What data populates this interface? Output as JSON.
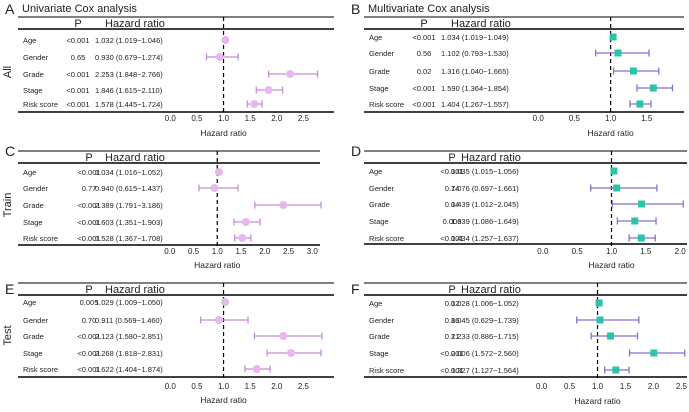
{
  "figure": {
    "row_labels": [
      "All",
      "Train",
      "Test"
    ],
    "colors": {
      "univariate_marker": "#e9b7ef",
      "univariate_line": "#c58fd6",
      "multivariate_marker": "#2bc4a9",
      "multivariate_line": "#8a6ed0",
      "text": "#222222",
      "rule": "#000000"
    }
  },
  "chart_data": [
    {
      "type": "forest",
      "panel": "A",
      "title": "Univariate Cox analysis",
      "col_p": "P",
      "col_hr": "Hazard ratio",
      "xlabel": "Hazard ratio",
      "xlim": [
        -0.1,
        3.0
      ],
      "ref_line": 1.0,
      "ticks": [
        "0.0",
        "0.5",
        "1.0",
        "1.5",
        "2.0",
        "2.5"
      ],
      "rows": [
        {
          "label": "Age",
          "p": "<0.001",
          "text": "1.032 (1.019−1.046)",
          "hr": 1.032,
          "lo": 1.019,
          "hi": 1.046
        },
        {
          "label": "Gender",
          "p": "0.65",
          "text": "0.930 (0.679−1.274)",
          "hr": 0.93,
          "lo": 0.679,
          "hi": 1.274
        },
        {
          "label": "Grade",
          "p": "<0.001",
          "text": "2.253 (1.848−2.766)",
          "hr": 2.253,
          "lo": 1.848,
          "hi": 2.766
        },
        {
          "label": "Stage",
          "p": "<0.001",
          "text": "1.846 (1.615−2.110)",
          "hr": 1.846,
          "lo": 1.615,
          "hi": 2.11
        },
        {
          "label": "Risk score",
          "p": "<0.001",
          "text": "1.578 (1.445−1.724)",
          "hr": 1.578,
          "lo": 1.445,
          "hi": 1.724
        }
      ]
    },
    {
      "type": "forest",
      "panel": "B",
      "title": "Multivariate Cox analysis",
      "col_p": "P",
      "col_hr": "Hazard ratio",
      "xlabel": "Hazard ratio",
      "xlim": [
        -0.1,
        2.0
      ],
      "ref_line": 1.0,
      "ticks": [
        "0.0",
        "0.5",
        "1.0",
        "1.5"
      ],
      "rows": [
        {
          "label": "Age",
          "p": "<0.001",
          "text": "1.034 (1.019−1.049)",
          "hr": 1.034,
          "lo": 1.019,
          "hi": 1.049
        },
        {
          "label": "Gender",
          "p": "0.56",
          "text": "1.102 (0.793−1.530)",
          "hr": 1.102,
          "lo": 0.793,
          "hi": 1.53
        },
        {
          "label": "Grade",
          "p": "0.02",
          "text": "1.316 (1.040−1.665)",
          "hr": 1.316,
          "lo": 1.04,
          "hi": 1.665
        },
        {
          "label": "Stage",
          "p": "<0.001",
          "text": "1.590 (1.364−1.854)",
          "hr": 1.59,
          "lo": 1.364,
          "hi": 1.854
        },
        {
          "label": "Risk score",
          "p": "<0.001",
          "text": "1.404 (1.267−1.557)",
          "hr": 1.404,
          "lo": 1.267,
          "hi": 1.557
        }
      ]
    },
    {
      "type": "forest",
      "panel": "C",
      "title": "",
      "col_p": "P",
      "col_hr": "Hazard ratio",
      "xlabel": "Hazard ratio",
      "xlim": [
        -0.1,
        3.1
      ],
      "ref_line": 1.0,
      "ticks": [
        "0.0",
        "0.5",
        "1.0",
        "1.5",
        "2.0",
        "2.5",
        "3.0"
      ],
      "rows": [
        {
          "label": "Age",
          "p": "<0.001",
          "text": "1.034 (1.016−1.052)",
          "hr": 1.034,
          "lo": 1.016,
          "hi": 1.052
        },
        {
          "label": "Gender",
          "p": "0.77",
          "text": "0.940 (0.615−1.437)",
          "hr": 0.94,
          "lo": 0.615,
          "hi": 1.437
        },
        {
          "label": "Grade",
          "p": "<0.001",
          "text": "2.389 (1.791−3.186)",
          "hr": 2.389,
          "lo": 1.791,
          "hi": 3.186
        },
        {
          "label": "Stage",
          "p": "<0.001",
          "text": "1.603 (1.351−1.903)",
          "hr": 1.603,
          "lo": 1.351,
          "hi": 1.903
        },
        {
          "label": "Risk score",
          "p": "<0.001",
          "text": "1.528 (1.367−1.708)",
          "hr": 1.528,
          "lo": 1.367,
          "hi": 1.708
        }
      ]
    },
    {
      "type": "forest",
      "panel": "D",
      "title": "",
      "col_p": "P",
      "col_hr": "Hazard ratio",
      "xlabel": "Hazard ratio",
      "xlim": [
        -0.1,
        2.1
      ],
      "ref_line": 1.0,
      "ticks": [
        "0.0",
        "0.5",
        "1.0",
        "1.5",
        "2.0"
      ],
      "rows": [
        {
          "label": "Age",
          "p": "<0.001",
          "text": "1.035 (1.015−1.056)",
          "hr": 1.035,
          "lo": 1.015,
          "hi": 1.056
        },
        {
          "label": "Gender",
          "p": "0.74",
          "text": "1.076 (0.697−1.661)",
          "hr": 1.076,
          "lo": 0.697,
          "hi": 1.661
        },
        {
          "label": "Grade",
          "p": "0.04",
          "text": "1.439 (1.012−2.045)",
          "hr": 1.439,
          "lo": 1.012,
          "hi": 2.045
        },
        {
          "label": "Stage",
          "p": "0.006",
          "text": "1.339 (1.086−1.649)",
          "hr": 1.339,
          "lo": 1.086,
          "hi": 1.649
        },
        {
          "label": "Risk score",
          "p": "<0.001",
          "text": "1.434 (1.257−1.637)",
          "hr": 1.434,
          "lo": 1.257,
          "hi": 1.637
        }
      ]
    },
    {
      "type": "forest",
      "panel": "E",
      "title": "",
      "col_p": "P",
      "col_hr": "Hazard ratio",
      "xlabel": "Hazard ratio",
      "xlim": [
        -0.1,
        3.0
      ],
      "ref_line": 1.0,
      "ticks": [
        "0.0",
        "0.5",
        "1.0",
        "1.5",
        "2.0",
        "2.5"
      ],
      "rows": [
        {
          "label": "Age",
          "p": "0.005",
          "text": "1.029 (1.009−1.050)",
          "hr": 1.029,
          "lo": 1.009,
          "hi": 1.05
        },
        {
          "label": "Gender",
          "p": "0.70",
          "text": "0.911 (0.569−1.460)",
          "hr": 0.911,
          "lo": 0.569,
          "hi": 1.46
        },
        {
          "label": "Grade",
          "p": "<0.001",
          "text": "2.123 (1.580−2.851)",
          "hr": 2.123,
          "lo": 1.58,
          "hi": 2.851
        },
        {
          "label": "Stage",
          "p": "<0.001",
          "text": "2.268 (1.818−2.831)",
          "hr": 2.268,
          "lo": 1.818,
          "hi": 2.831
        },
        {
          "label": "Risk score",
          "p": "<0.001",
          "text": "1.622 (1.404−1.874)",
          "hr": 1.622,
          "lo": 1.404,
          "hi": 1.874
        }
      ]
    },
    {
      "type": "forest",
      "panel": "F",
      "title": "",
      "col_p": "P",
      "col_hr": "Hazard ratio",
      "xlabel": "Hazard ratio",
      "xlim": [
        -0.1,
        2.6
      ],
      "ref_line": 1.0,
      "ticks": [
        "0.0",
        "0.5",
        "1.0",
        "1.5",
        "2.0",
        "2.5"
      ],
      "rows": [
        {
          "label": "Age",
          "p": "0.02",
          "text": "1.028 (1.006−1.052)",
          "hr": 1.028,
          "lo": 1.006,
          "hi": 1.052
        },
        {
          "label": "Gender",
          "p": "0.86",
          "text": "1.045 (0.629−1.739)",
          "hr": 1.045,
          "lo": 0.629,
          "hi": 1.739
        },
        {
          "label": "Grade",
          "p": "0.21",
          "text": "1.233 (0.886−1.715)",
          "hr": 1.233,
          "lo": 0.886,
          "hi": 1.715
        },
        {
          "label": "Stage",
          "p": "<0.001",
          "text": "2.006 (1.572−2.560)",
          "hr": 2.006,
          "lo": 1.572,
          "hi": 2.56
        },
        {
          "label": "Risk score",
          "p": "<0.001",
          "text": "1.327 (1.127−1.564)",
          "hr": 1.327,
          "lo": 1.127,
          "hi": 1.564
        }
      ]
    }
  ]
}
